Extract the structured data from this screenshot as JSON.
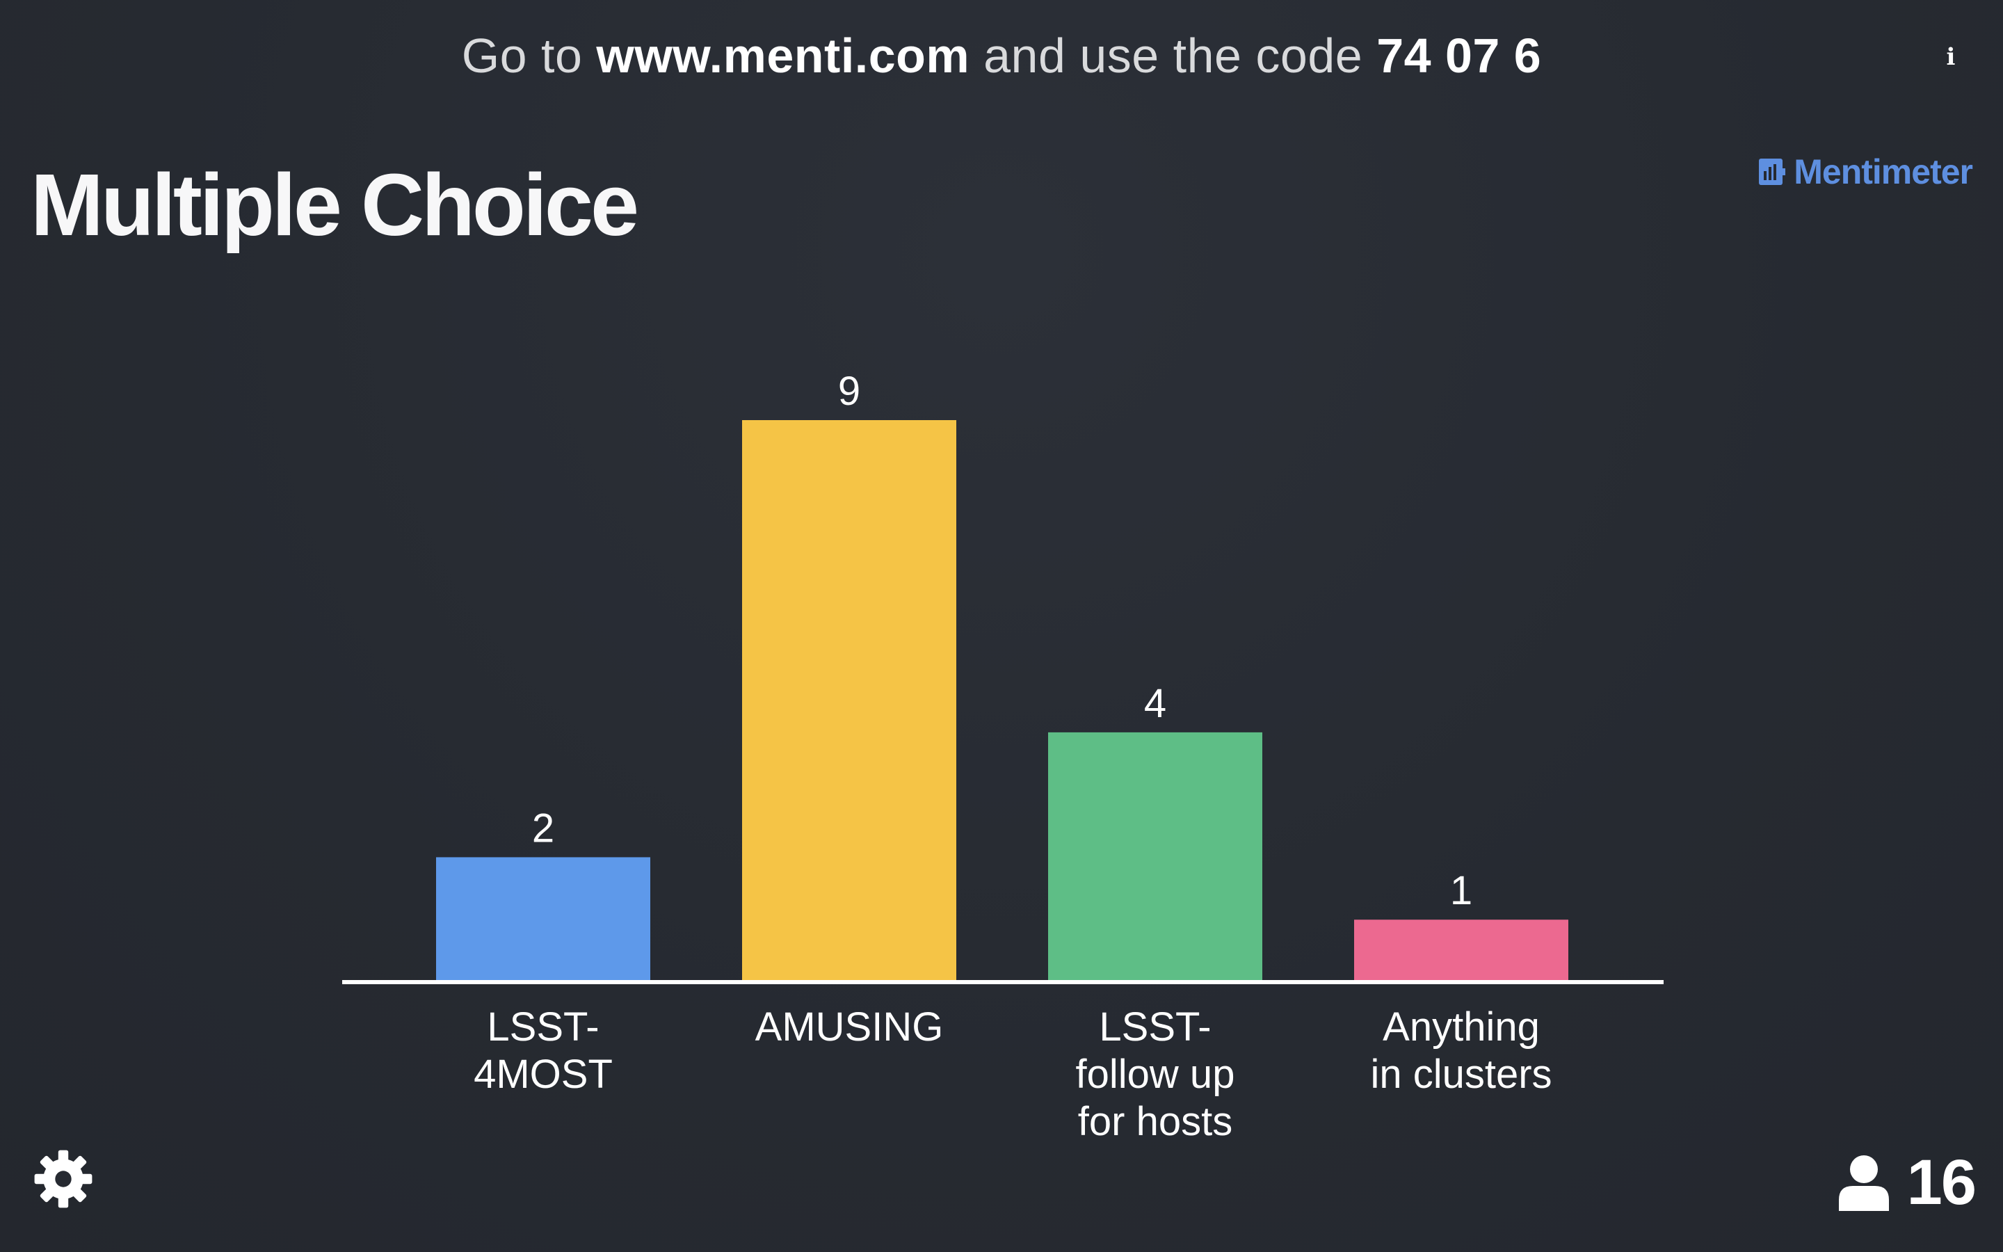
{
  "join": {
    "prefix": "Go to",
    "url": "www.menti.com",
    "middle": "and use the code",
    "code": "74 07 6"
  },
  "info_label": "i",
  "brand": {
    "name": "Mentimeter",
    "color": "#5e8fe0"
  },
  "slide": {
    "title": "Multiple Choice"
  },
  "participants": {
    "count": "16",
    "icon": "user-icon"
  },
  "settings": {
    "icon": "gear-icon"
  },
  "colors": {
    "background": "#262a31",
    "axis": "#ffffff"
  },
  "chart_data": {
    "type": "bar",
    "categories": [
      [
        "LSST-",
        "4MOST"
      ],
      [
        "AMUSING"
      ],
      [
        "LSST-",
        "follow up",
        "for hosts"
      ],
      [
        "Anything",
        "in clusters"
      ]
    ],
    "values": [
      2,
      9,
      4,
      1
    ],
    "colors": [
      "#5e99ea",
      "#f5c446",
      "#5ebe86",
      "#ec6990"
    ],
    "ylim": [
      0,
      9
    ],
    "grid": false
  }
}
